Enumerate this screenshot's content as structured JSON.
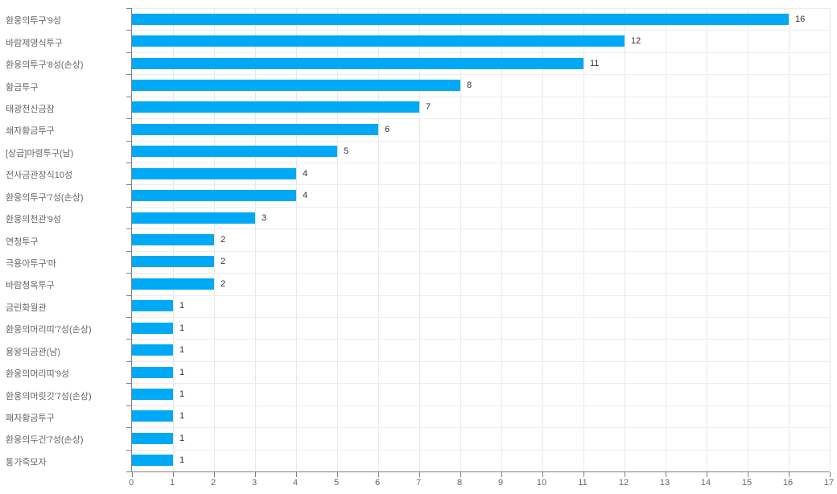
{
  "chart_data": {
    "type": "bar",
    "orientation": "horizontal",
    "title": "",
    "xlabel": "",
    "ylabel": "",
    "categories": [
      "환웅의투구'9성",
      "바람제영식투구",
      "환웅의투구'8성(손상)",
      "황금투구",
      "태광천신금잠",
      "쇄자황금투구",
      "[상급]마령투구(남)",
      "전사금관장식10성",
      "환웅의투구'7성(손상)",
      "환웅의천관'9성",
      "연청투구",
      "극용아투구'마",
      "바람청옥투구",
      "금린화월관",
      "환웅의머리띠'7성(손상)",
      "용왕의금관(남)",
      "환웅의머리띠'9성",
      "환웅의머릿깃'7성(손상)",
      "패자황금투구",
      "환웅의두건'7성(손상)",
      "통가죽모자"
    ],
    "values": [
      16,
      12,
      11,
      8,
      7,
      6,
      5,
      4,
      4,
      3,
      2,
      2,
      2,
      1,
      1,
      1,
      1,
      1,
      1,
      1,
      1
    ],
    "xlim": [
      0,
      17
    ],
    "x_ticks": [
      0,
      1,
      2,
      3,
      4,
      5,
      6,
      7,
      8,
      9,
      10,
      11,
      12,
      13,
      14,
      15,
      16,
      17
    ],
    "grid": true,
    "legend": false,
    "data_labels": true,
    "colors": {
      "bar": "#00a9f5",
      "category_label": "#666666",
      "value_label": "#333333",
      "axis_line": "#808080",
      "gridline_v": "#e8e8e8",
      "gridline_h": "#ededed",
      "background": "#ffffff"
    }
  }
}
